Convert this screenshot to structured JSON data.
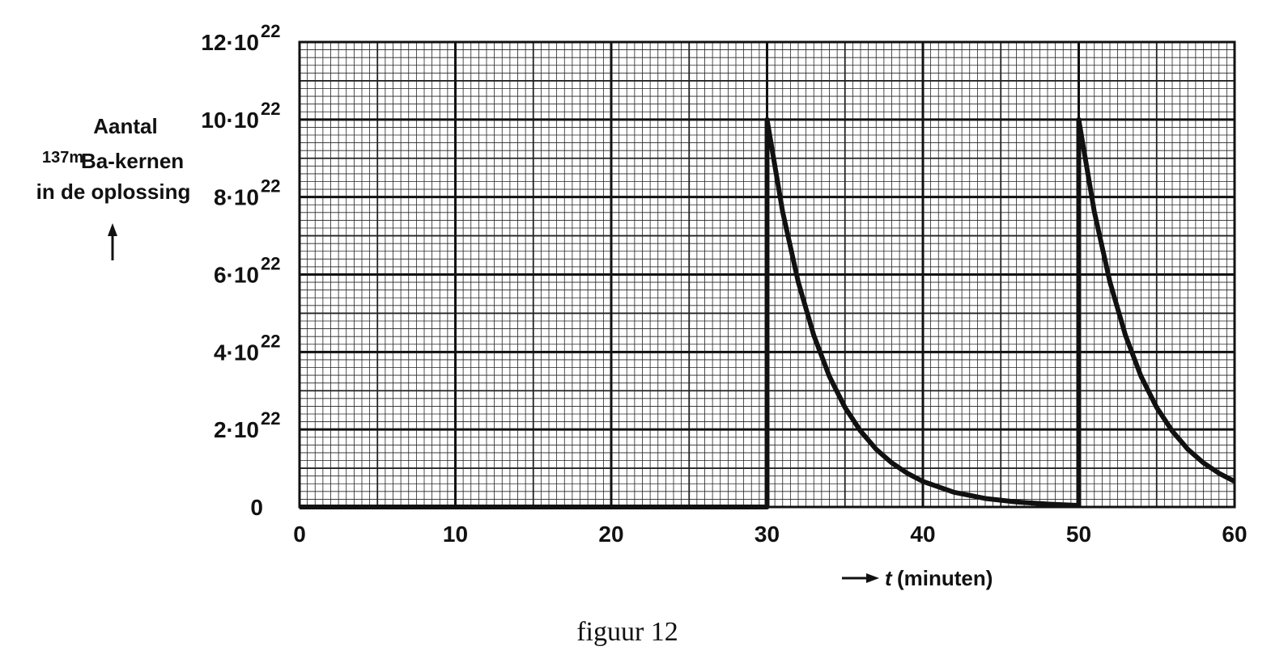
{
  "chart_data": {
    "type": "line",
    "caption": "figuur 12",
    "y_label": {
      "line1": "Aantal",
      "superscript": "137m",
      "line2": "Ba-kernen",
      "line3": "in de oplossing"
    },
    "x_label": {
      "variable": "t",
      "unit": "(minuten)"
    },
    "series": [
      {
        "color": "#111111",
        "x": [
          0,
          30,
          30,
          31,
          32,
          33,
          34,
          35,
          36,
          37,
          38,
          39,
          40,
          42,
          44,
          46,
          48,
          50,
          50,
          51,
          52,
          53,
          54,
          55,
          56,
          57,
          58,
          59,
          60
        ],
        "values": [
          0,
          0,
          1e+23,
          7.62e+22,
          5.81e+22,
          4.43e+22,
          3.37e+22,
          2.57e+22,
          1.96e+22,
          1.49e+22,
          1.14e+22,
          8.7e+21,
          6.6e+21,
          3.8e+21,
          2.2e+21,
          1.3e+21,
          7.5e+20,
          4e+20,
          1e+23,
          7.62e+22,
          5.81e+22,
          4.43e+22,
          3.37e+22,
          2.57e+22,
          1.96e+22,
          1.49e+22,
          1.14e+22,
          8.7e+21,
          6.6e+21
        ]
      }
    ],
    "xlim": [
      0,
      60
    ],
    "xticks": [
      0,
      10,
      20,
      30,
      40,
      50,
      60
    ],
    "ylim": [
      0,
      1.2e+23
    ],
    "yticks": [
      0,
      {
        "value": 2e+22,
        "label": "2·10",
        "exponent": "22"
      },
      {
        "value": 4e+22,
        "label": "4·10",
        "exponent": "22"
      },
      {
        "value": 6e+22,
        "label": "6·10",
        "exponent": "22"
      },
      {
        "value": 8e+22,
        "label": "8·10",
        "exponent": "22"
      },
      {
        "value": 1e+23,
        "label": "10·10",
        "exponent": "22"
      },
      {
        "value": 1.2e+23,
        "label": "12·10",
        "exponent": "22"
      }
    ],
    "grid": true
  }
}
